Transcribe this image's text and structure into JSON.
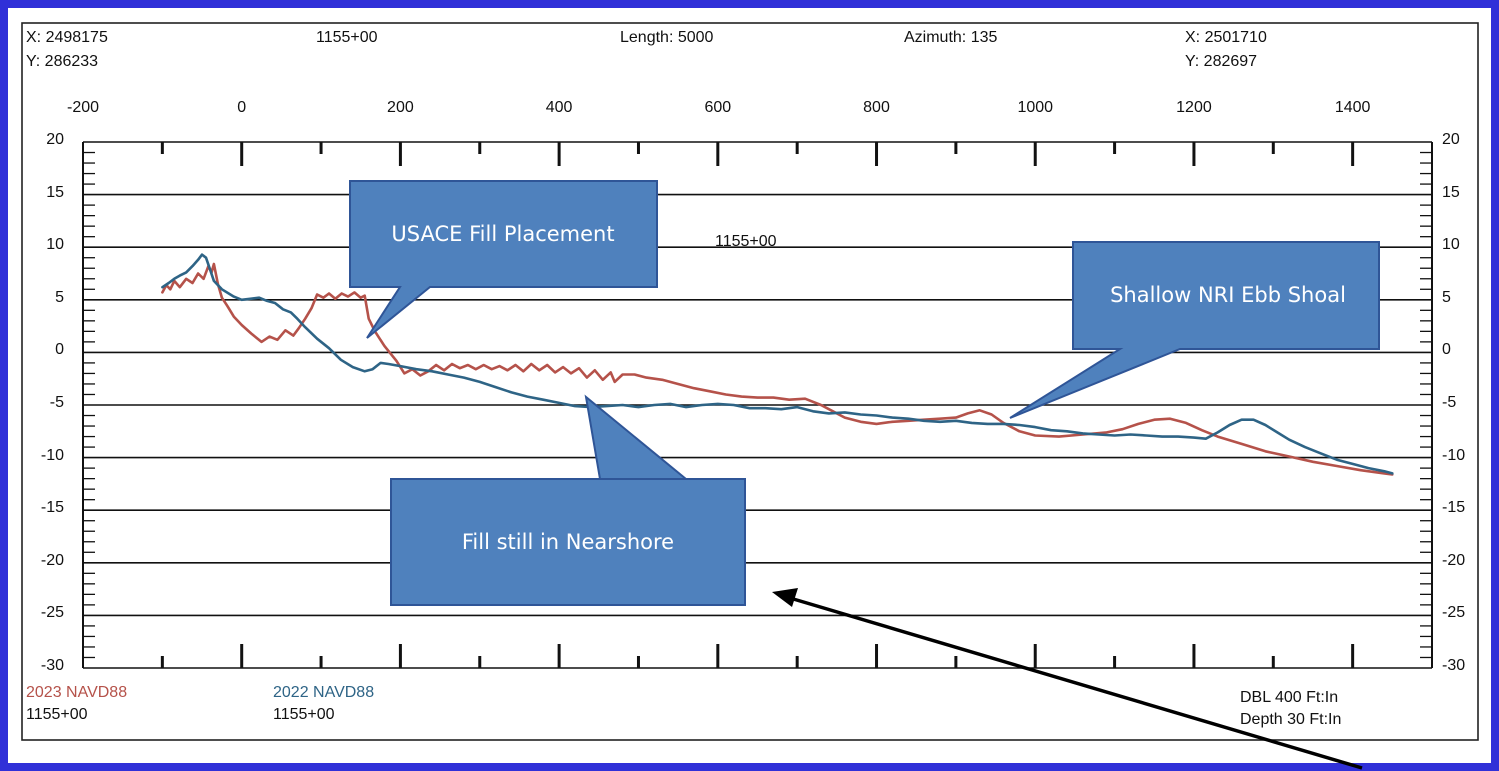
{
  "header": {
    "start_x": "X: 2498175",
    "start_y": "Y: 286233",
    "station": "1155+00",
    "length": "Length: 5000",
    "azimuth": "Azimuth: 135",
    "end_x": "X: 2501710",
    "end_y": "Y: 282697"
  },
  "inner_label": "1155+00",
  "footer": {
    "series_2023_name": "2023 NAVD88",
    "series_2023_station": "1155+00",
    "series_2022_name": "2022 NAVD88",
    "series_2022_station": "1155+00",
    "dbl": "DBL 400 Ft:In",
    "depth": "Depth 30 Ft:In"
  },
  "callouts": {
    "usace": "USACE Fill Placement",
    "nri": "Shallow NRI Ebb Shoal",
    "nearshore": "Fill still in Nearshore"
  },
  "colors": {
    "border": "#3030d8",
    "callout_fill": "#4f81bd",
    "callout_stroke": "#2f5597",
    "series_2023": "#b5524a",
    "series_2022": "#2e6486",
    "arrow": "#000000"
  },
  "chart_data": {
    "type": "line",
    "x_ticks": [
      "-200",
      "0",
      "200",
      "400",
      "600",
      "800",
      "1000",
      "1200",
      "1400"
    ],
    "y_ticks": [
      "20",
      "15",
      "10",
      "5",
      "0",
      "-5",
      "-10",
      "-15",
      "-20",
      "-25",
      "-30"
    ],
    "xlim": [
      -200,
      1500
    ],
    "ylim": [
      -30,
      20
    ],
    "series": [
      {
        "name": "2023 NAVD88",
        "color": "#b5524a",
        "points": [
          [
            -100,
            5.7
          ],
          [
            -95,
            6.4
          ],
          [
            -90,
            6.0
          ],
          [
            -85,
            6.8
          ],
          [
            -78,
            6.2
          ],
          [
            -70,
            7.0
          ],
          [
            -62,
            6.6
          ],
          [
            -55,
            7.5
          ],
          [
            -48,
            7.0
          ],
          [
            -42,
            8.2
          ],
          [
            -38,
            7.6
          ],
          [
            -35,
            8.4
          ],
          [
            -30,
            6.5
          ],
          [
            -25,
            5.2
          ],
          [
            -18,
            4.4
          ],
          [
            -10,
            3.4
          ],
          [
            0,
            2.6
          ],
          [
            12,
            1.8
          ],
          [
            25,
            1.0
          ],
          [
            35,
            1.5
          ],
          [
            45,
            1.2
          ],
          [
            55,
            2.1
          ],
          [
            65,
            1.6
          ],
          [
            72,
            2.3
          ],
          [
            80,
            3.2
          ],
          [
            88,
            4.2
          ],
          [
            95,
            5.5
          ],
          [
            103,
            5.2
          ],
          [
            110,
            5.6
          ],
          [
            118,
            5.1
          ],
          [
            126,
            5.6
          ],
          [
            134,
            5.3
          ],
          [
            142,
            5.7
          ],
          [
            150,
            5.2
          ],
          [
            155,
            5.4
          ],
          [
            160,
            3.2
          ],
          [
            168,
            2.0
          ],
          [
            180,
            0.6
          ],
          [
            195,
            -0.8
          ],
          [
            205,
            -2.0
          ],
          [
            215,
            -1.6
          ],
          [
            225,
            -2.2
          ],
          [
            235,
            -1.8
          ],
          [
            245,
            -1.2
          ],
          [
            255,
            -1.7
          ],
          [
            265,
            -1.1
          ],
          [
            275,
            -1.5
          ],
          [
            285,
            -1.2
          ],
          [
            295,
            -1.6
          ],
          [
            305,
            -1.2
          ],
          [
            315,
            -1.6
          ],
          [
            325,
            -1.3
          ],
          [
            335,
            -1.7
          ],
          [
            345,
            -1.2
          ],
          [
            355,
            -1.8
          ],
          [
            365,
            -1.1
          ],
          [
            375,
            -1.7
          ],
          [
            385,
            -1.2
          ],
          [
            395,
            -1.9
          ],
          [
            405,
            -1.4
          ],
          [
            415,
            -2.0
          ],
          [
            425,
            -1.5
          ],
          [
            435,
            -2.4
          ],
          [
            445,
            -1.7
          ],
          [
            455,
            -2.6
          ],
          [
            465,
            -1.9
          ],
          [
            470,
            -2.8
          ],
          [
            480,
            -2.1
          ],
          [
            495,
            -2.1
          ],
          [
            510,
            -2.4
          ],
          [
            530,
            -2.6
          ],
          [
            550,
            -3.0
          ],
          [
            570,
            -3.4
          ],
          [
            590,
            -3.7
          ],
          [
            610,
            -4.0
          ],
          [
            630,
            -4.2
          ],
          [
            650,
            -4.3
          ],
          [
            670,
            -4.3
          ],
          [
            690,
            -4.5
          ],
          [
            710,
            -4.4
          ],
          [
            730,
            -5.0
          ],
          [
            745,
            -5.6
          ],
          [
            760,
            -6.2
          ],
          [
            780,
            -6.6
          ],
          [
            800,
            -6.8
          ],
          [
            820,
            -6.6
          ],
          [
            840,
            -6.5
          ],
          [
            860,
            -6.4
          ],
          [
            880,
            -6.3
          ],
          [
            900,
            -6.2
          ],
          [
            915,
            -5.8
          ],
          [
            930,
            -5.5
          ],
          [
            945,
            -5.9
          ],
          [
            960,
            -6.7
          ],
          [
            980,
            -7.5
          ],
          [
            1000,
            -7.9
          ],
          [
            1030,
            -8.0
          ],
          [
            1060,
            -7.8
          ],
          [
            1090,
            -7.6
          ],
          [
            1110,
            -7.3
          ],
          [
            1130,
            -6.8
          ],
          [
            1150,
            -6.4
          ],
          [
            1170,
            -6.3
          ],
          [
            1190,
            -6.7
          ],
          [
            1210,
            -7.4
          ],
          [
            1230,
            -8.0
          ],
          [
            1260,
            -8.7
          ],
          [
            1290,
            -9.4
          ],
          [
            1320,
            -9.9
          ],
          [
            1350,
            -10.4
          ],
          [
            1380,
            -10.8
          ],
          [
            1410,
            -11.2
          ],
          [
            1440,
            -11.5
          ],
          [
            1450,
            -11.6
          ]
        ]
      },
      {
        "name": "2022 NAVD88",
        "color": "#2e6486",
        "points": [
          [
            -100,
            6.2
          ],
          [
            -92,
            6.6
          ],
          [
            -85,
            7.0
          ],
          [
            -78,
            7.3
          ],
          [
            -70,
            7.6
          ],
          [
            -62,
            8.2
          ],
          [
            -55,
            8.8
          ],
          [
            -50,
            9.3
          ],
          [
            -45,
            9.0
          ],
          [
            -40,
            7.9
          ],
          [
            -35,
            6.8
          ],
          [
            -25,
            6.0
          ],
          [
            -10,
            5.3
          ],
          [
            0,
            5.0
          ],
          [
            12,
            5.1
          ],
          [
            22,
            5.2
          ],
          [
            32,
            4.9
          ],
          [
            42,
            4.7
          ],
          [
            52,
            4.1
          ],
          [
            62,
            3.8
          ],
          [
            70,
            3.2
          ],
          [
            80,
            2.4
          ],
          [
            95,
            1.3
          ],
          [
            110,
            0.4
          ],
          [
            125,
            -0.7
          ],
          [
            140,
            -1.4
          ],
          [
            155,
            -1.8
          ],
          [
            165,
            -1.6
          ],
          [
            175,
            -1.0
          ],
          [
            185,
            -1.1
          ],
          [
            200,
            -1.3
          ],
          [
            220,
            -1.6
          ],
          [
            240,
            -1.8
          ],
          [
            260,
            -2.1
          ],
          [
            280,
            -2.4
          ],
          [
            300,
            -2.8
          ],
          [
            320,
            -3.3
          ],
          [
            340,
            -3.8
          ],
          [
            360,
            -4.2
          ],
          [
            380,
            -4.5
          ],
          [
            400,
            -4.8
          ],
          [
            420,
            -5.1
          ],
          [
            440,
            -5.2
          ],
          [
            460,
            -5.1
          ],
          [
            480,
            -5.0
          ],
          [
            500,
            -5.2
          ],
          [
            520,
            -5.0
          ],
          [
            540,
            -4.9
          ],
          [
            560,
            -5.2
          ],
          [
            580,
            -5.0
          ],
          [
            600,
            -4.9
          ],
          [
            620,
            -5.0
          ],
          [
            640,
            -5.3
          ],
          [
            660,
            -5.3
          ],
          [
            680,
            -5.4
          ],
          [
            700,
            -5.2
          ],
          [
            720,
            -5.6
          ],
          [
            740,
            -5.8
          ],
          [
            760,
            -5.7
          ],
          [
            780,
            -5.9
          ],
          [
            800,
            -6.0
          ],
          [
            820,
            -6.2
          ],
          [
            840,
            -6.3
          ],
          [
            860,
            -6.5
          ],
          [
            880,
            -6.6
          ],
          [
            900,
            -6.5
          ],
          [
            920,
            -6.7
          ],
          [
            940,
            -6.8
          ],
          [
            960,
            -6.8
          ],
          [
            980,
            -6.9
          ],
          [
            1000,
            -7.1
          ],
          [
            1020,
            -7.4
          ],
          [
            1040,
            -7.5
          ],
          [
            1060,
            -7.7
          ],
          [
            1080,
            -7.8
          ],
          [
            1100,
            -7.9
          ],
          [
            1120,
            -7.8
          ],
          [
            1140,
            -7.9
          ],
          [
            1160,
            -8.0
          ],
          [
            1180,
            -8.0
          ],
          [
            1200,
            -8.1
          ],
          [
            1215,
            -8.2
          ],
          [
            1230,
            -7.6
          ],
          [
            1245,
            -6.9
          ],
          [
            1260,
            -6.4
          ],
          [
            1275,
            -6.4
          ],
          [
            1290,
            -6.9
          ],
          [
            1305,
            -7.6
          ],
          [
            1320,
            -8.3
          ],
          [
            1340,
            -9.0
          ],
          [
            1360,
            -9.6
          ],
          [
            1380,
            -10.2
          ],
          [
            1400,
            -10.6
          ],
          [
            1420,
            -11.0
          ],
          [
            1440,
            -11.3
          ],
          [
            1450,
            -11.5
          ]
        ]
      }
    ]
  }
}
